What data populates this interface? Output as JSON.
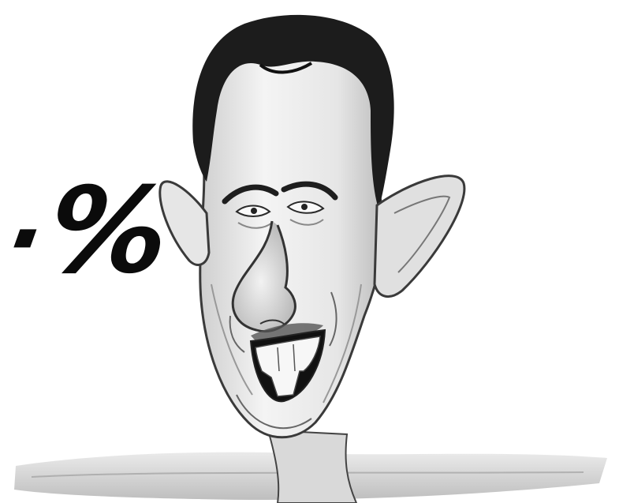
{
  "caricature": {
    "caption_text": "٠%"
  }
}
